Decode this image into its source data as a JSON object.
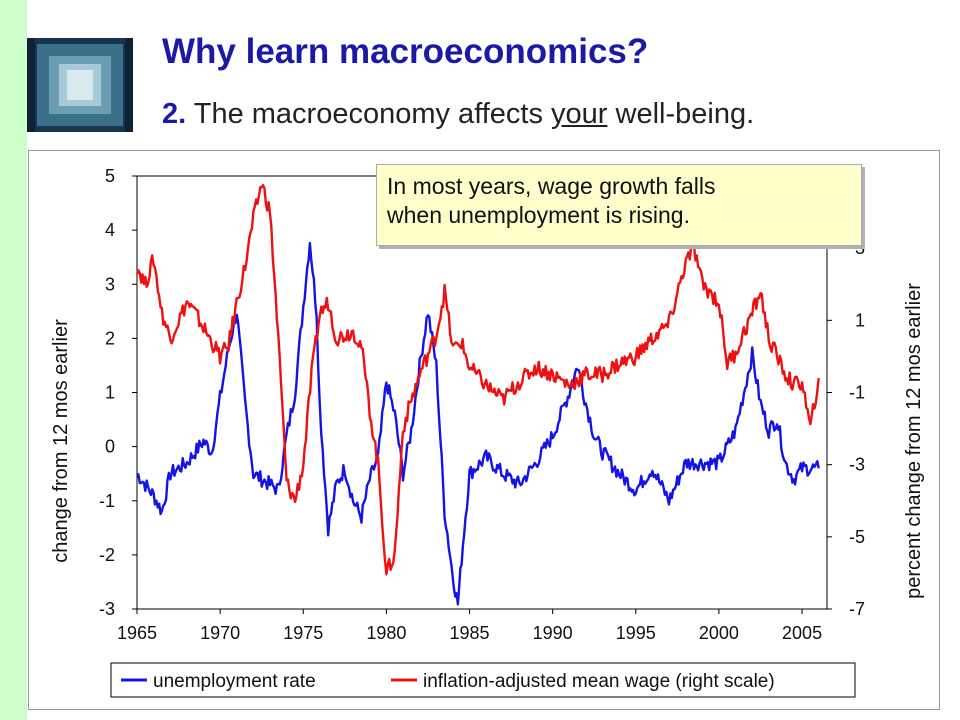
{
  "slide": {
    "title": "Why learn macroeconomics?",
    "subtitle_number": "2.",
    "subtitle_before": "The macroeconomy affects ",
    "subtitle_emph": "your",
    "subtitle_after": " well-being.",
    "callout_line1": "In most years, wage growth falls",
    "callout_line2": "when unemployment is rising."
  },
  "colors": {
    "unemployment": "#1414e6",
    "wage": "#ee1111",
    "title": "#1a1aa6",
    "left_bar": "#ccffcc"
  },
  "icons": [
    "framed-photo-thumbnail"
  ],
  "chart_data": {
    "type": "line",
    "xlim": [
      1965,
      2006.5
    ],
    "x_ticks": [
      1965,
      1970,
      1975,
      1980,
      1985,
      1990,
      1995,
      2000,
      2005
    ],
    "y_left": {
      "label": "change from 12 mos earlier",
      "lim": [
        -3,
        5
      ],
      "ticks": [
        5,
        4,
        3,
        2,
        1,
        0,
        -1,
        -2,
        -3
      ]
    },
    "y_right": {
      "label": "percent change from 12 mos earlier",
      "lim": [
        -7,
        5
      ],
      "ticks": [
        3,
        1,
        -1,
        -3,
        -5,
        -7
      ]
    },
    "grid": false,
    "legend": "bottom",
    "series": [
      {
        "name": "unemployment rate",
        "axis": "left",
        "points": [
          [
            1965,
            -0.5
          ],
          [
            1966,
            -0.9
          ],
          [
            1966.5,
            -1.2
          ],
          [
            1967,
            -0.5
          ],
          [
            1968,
            -0.3
          ],
          [
            1969,
            0.1
          ],
          [
            1969.5,
            -0.1
          ],
          [
            1970,
            0.9
          ],
          [
            1970.5,
            1.8
          ],
          [
            1971,
            2.5
          ],
          [
            1971.5,
            0.8
          ],
          [
            1972,
            -0.5
          ],
          [
            1973,
            -0.7
          ],
          [
            1973.5,
            -0.8
          ],
          [
            1974,
            0.2
          ],
          [
            1974.5,
            1.0
          ],
          [
            1975,
            2.6
          ],
          [
            1975.4,
            3.8
          ],
          [
            1975.8,
            2.5
          ],
          [
            1976,
            0.7
          ],
          [
            1976.5,
            -1.5
          ],
          [
            1977,
            -0.7
          ],
          [
            1977.5,
            -0.4
          ],
          [
            1978,
            -1.0
          ],
          [
            1978.5,
            -1.3
          ],
          [
            1979,
            -0.6
          ],
          [
            1979.5,
            -0.2
          ],
          [
            1980,
            1.2
          ],
          [
            1980.5,
            0.6
          ],
          [
            1981,
            -0.5
          ],
          [
            1981.5,
            0.3
          ],
          [
            1982,
            1.5
          ],
          [
            1982.5,
            2.5
          ],
          [
            1983,
            1.5
          ],
          [
            1983.5,
            -1.2
          ],
          [
            1984,
            -2.4
          ],
          [
            1984.3,
            -2.9
          ],
          [
            1984.6,
            -1.8
          ],
          [
            1985,
            -0.5
          ],
          [
            1986,
            -0.2
          ],
          [
            1987,
            -0.5
          ],
          [
            1988,
            -0.7
          ],
          [
            1989,
            -0.3
          ],
          [
            1990,
            0.2
          ],
          [
            1991,
            1.0
          ],
          [
            1991.5,
            1.5
          ],
          [
            1992,
            0.8
          ],
          [
            1992.5,
            0.2
          ],
          [
            1993,
            -0.1
          ],
          [
            1994,
            -0.5
          ],
          [
            1995,
            -0.8
          ],
          [
            1996,
            -0.4
          ],
          [
            1997,
            -1.0
          ],
          [
            1998,
            -0.3
          ],
          [
            1999,
            -0.3
          ],
          [
            2000,
            -0.3
          ],
          [
            2001,
            0.3
          ],
          [
            2001.5,
            1.0
          ],
          [
            2002,
            1.7
          ],
          [
            2002.5,
            0.8
          ],
          [
            2003,
            0.3
          ],
          [
            2003.5,
            0.5
          ],
          [
            2004,
            -0.3
          ],
          [
            2004.5,
            -0.6
          ],
          [
            2005,
            -0.4
          ],
          [
            2006,
            -0.4
          ]
        ]
      },
      {
        "name": "inflation-adjusted mean wage (right scale)",
        "axis": "right",
        "points": [
          [
            1965,
            2.5
          ],
          [
            1965.5,
            2.0
          ],
          [
            1966,
            2.7
          ],
          [
            1966.5,
            1.2
          ],
          [
            1967,
            0.5
          ],
          [
            1967.5,
            1.0
          ],
          [
            1968,
            1.5
          ],
          [
            1968.5,
            1.2
          ],
          [
            1969,
            0.8
          ],
          [
            1969.5,
            0.4
          ],
          [
            1970,
            0.0
          ],
          [
            1970.5,
            0.3
          ],
          [
            1971,
            1.5
          ],
          [
            1971.5,
            2.5
          ],
          [
            1972,
            3.8
          ],
          [
            1972.5,
            4.8
          ],
          [
            1973,
            4.0
          ],
          [
            1973.5,
            0.5
          ],
          [
            1974,
            -3.5
          ],
          [
            1974.5,
            -4.0
          ],
          [
            1975,
            -3.0
          ],
          [
            1975.5,
            -0.5
          ],
          [
            1976,
            1.2
          ],
          [
            1976.5,
            1.5
          ],
          [
            1977,
            0.5
          ],
          [
            1978,
            0.7
          ],
          [
            1978.5,
            0.3
          ],
          [
            1979,
            -1.5
          ],
          [
            1979.5,
            -3.0
          ],
          [
            1980,
            -6.0
          ],
          [
            1980.5,
            -5.5
          ],
          [
            1981,
            -2.0
          ],
          [
            1981.5,
            -1.2
          ],
          [
            1982,
            -0.5
          ],
          [
            1983,
            0.6
          ],
          [
            1983.5,
            1.8
          ],
          [
            1984,
            0.2
          ],
          [
            1984.5,
            0.4
          ],
          [
            1985,
            -0.3
          ],
          [
            1986,
            -0.8
          ],
          [
            1987,
            -1.2
          ],
          [
            1988,
            -0.7
          ],
          [
            1989,
            -0.3
          ],
          [
            1990,
            -0.5
          ],
          [
            1991,
            -0.8
          ],
          [
            1992,
            -0.5
          ],
          [
            1993,
            -0.5
          ],
          [
            1994,
            -0.2
          ],
          [
            1995,
            0.0
          ],
          [
            1996,
            0.5
          ],
          [
            1997,
            0.9
          ],
          [
            1998,
            2.6
          ],
          [
            1998.5,
            3.0
          ],
          [
            1999,
            2.0
          ],
          [
            2000,
            1.5
          ],
          [
            2000.5,
            -0.2
          ],
          [
            2001,
            0.1
          ],
          [
            2002,
            1.2
          ],
          [
            2002.5,
            1.8
          ],
          [
            2003,
            0.5
          ],
          [
            2004,
            -0.5
          ],
          [
            2004.5,
            -0.8
          ],
          [
            2005,
            -0.7
          ],
          [
            2005.5,
            -2.0
          ],
          [
            2006,
            -0.6
          ]
        ]
      }
    ]
  }
}
